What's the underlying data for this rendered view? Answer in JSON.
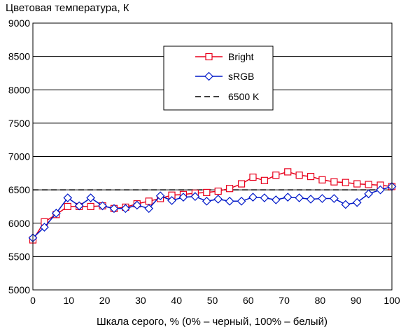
{
  "chart_data": {
    "type": "line",
    "ylabel": "Цветовая температура, К",
    "xlabel": "Шкала серого, % (0% – черный, 100% – белый)",
    "xlim": [
      0,
      100
    ],
    "ylim": [
      5000,
      9000
    ],
    "xticks": [
      0,
      10,
      20,
      30,
      40,
      50,
      60,
      70,
      80,
      90,
      100
    ],
    "yticks": [
      5000,
      5500,
      6000,
      6500,
      7000,
      7500,
      8000,
      8500,
      9000
    ],
    "grid": "horizontal",
    "legend_position": "top-center",
    "series": [
      {
        "name": "Bright",
        "color": "#e8001c",
        "marker": "square",
        "x": [
          0,
          3.2,
          6.5,
          9.7,
          12.9,
          16.1,
          19.4,
          22.6,
          25.8,
          29.0,
          32.3,
          35.5,
          38.7,
          41.9,
          45.2,
          48.4,
          51.6,
          54.8,
          58.1,
          61.3,
          64.5,
          67.7,
          71.0,
          74.2,
          77.4,
          80.6,
          83.9,
          87.1,
          90.3,
          93.5,
          96.8,
          100
        ],
        "y": [
          5750,
          6020,
          6130,
          6250,
          6250,
          6250,
          6260,
          6220,
          6240,
          6290,
          6330,
          6370,
          6420,
          6430,
          6450,
          6460,
          6480,
          6520,
          6590,
          6690,
          6640,
          6720,
          6770,
          6720,
          6700,
          6650,
          6620,
          6610,
          6590,
          6580,
          6570,
          6550
        ]
      },
      {
        "name": "sRGB",
        "color": "#0018c8",
        "marker": "diamond",
        "x": [
          0,
          3.2,
          6.5,
          9.7,
          12.9,
          16.1,
          19.4,
          22.6,
          25.8,
          29.0,
          32.3,
          35.5,
          38.7,
          41.9,
          45.2,
          48.4,
          51.6,
          54.8,
          58.1,
          61.3,
          64.5,
          67.7,
          71.0,
          74.2,
          77.4,
          80.6,
          83.9,
          87.1,
          90.3,
          93.5,
          96.8,
          100
        ],
        "y": [
          5780,
          5940,
          6150,
          6380,
          6260,
          6380,
          6260,
          6220,
          6220,
          6270,
          6220,
          6410,
          6340,
          6390,
          6400,
          6330,
          6360,
          6330,
          6330,
          6390,
          6380,
          6350,
          6390,
          6380,
          6360,
          6370,
          6370,
          6280,
          6310,
          6440,
          6500,
          6550
        ]
      },
      {
        "name": "6500 K",
        "color": "#000000",
        "marker": "none",
        "dashed": true,
        "x": [
          0,
          100
        ],
        "y": [
          6500,
          6500
        ]
      }
    ]
  }
}
